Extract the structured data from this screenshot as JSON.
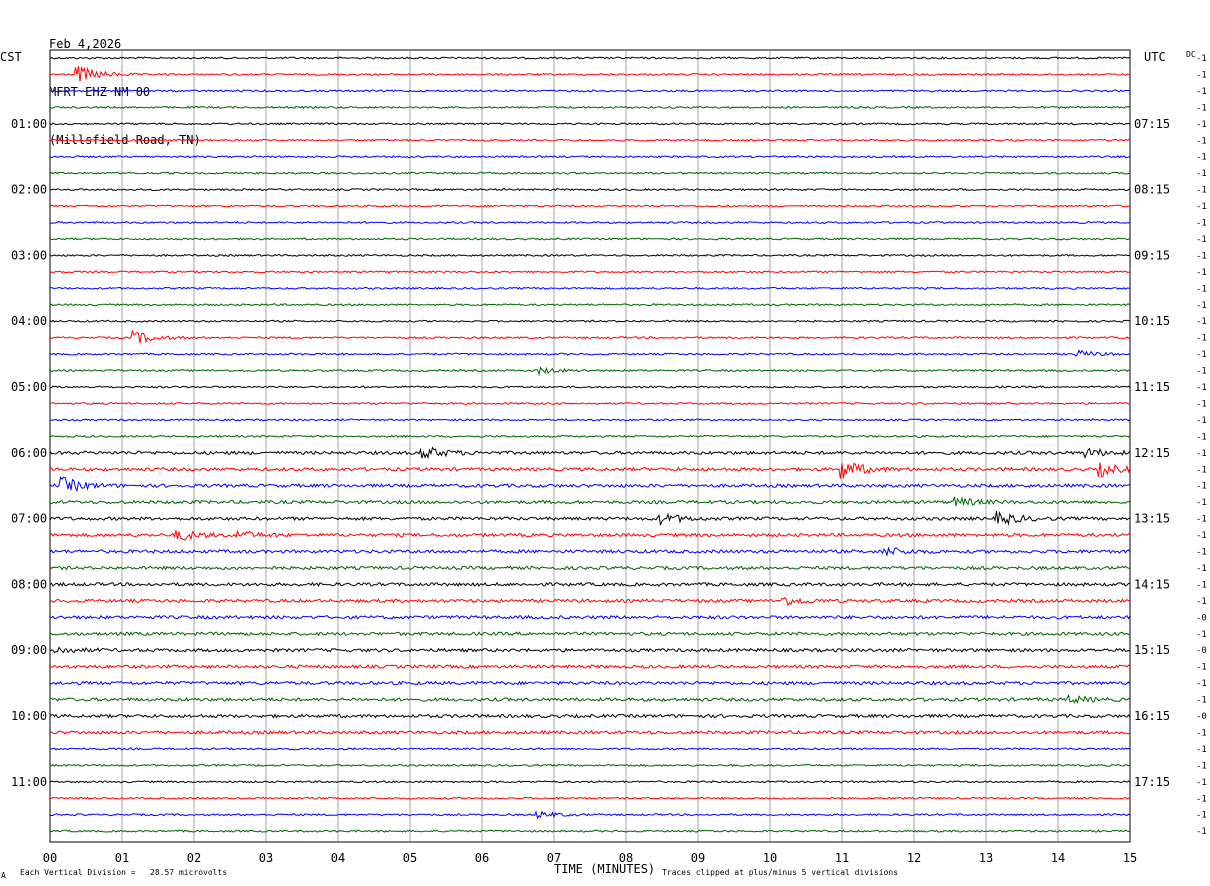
{
  "header": {
    "date": "Feb 4,2026",
    "station": "MFRT EHZ NM 00",
    "location": "(Millsfield Road, TN)"
  },
  "left_timezone": "CST",
  "right_timezone": "UTC",
  "dc_label": "DC",
  "left_hour_labels": [
    "01:00",
    "02:00",
    "03:00",
    "04:00",
    "05:00",
    "06:00",
    "07:00",
    "08:00",
    "09:00",
    "10:00",
    "11:00"
  ],
  "right_hour_labels": [
    "07:15",
    "08:15",
    "09:15",
    "10:15",
    "11:15",
    "12:15",
    "13:15",
    "14:15",
    "15:15",
    "16:15",
    "17:15"
  ],
  "footer": {
    "scale_note": "Each Vertical Division =   28.57 microvolts",
    "xlabel": "TIME (MINUTES)",
    "clip_note": "Traces clipped at plus/minus 5 vertical divisions",
    "corner_mark": "A"
  },
  "colors": {
    "cycle": [
      "#000000",
      "#ff0000",
      "#0000ff",
      "#006400"
    ],
    "grid": "#808080"
  },
  "chart_data": {
    "type": "line",
    "title": "",
    "xlabel": "TIME (MINUTES)",
    "xlim": [
      0,
      15
    ],
    "x_ticks": [
      "00",
      "01",
      "02",
      "03",
      "04",
      "05",
      "06",
      "07",
      "08",
      "09",
      "10",
      "11",
      "12",
      "13",
      "14",
      "15"
    ],
    "trace_count": 48,
    "trace_offsets": [
      "-1",
      "-1",
      "-1",
      "-1",
      "-1",
      "-1",
      "-1",
      "-1",
      "-1",
      "-1",
      "-1",
      "-1",
      "-1",
      "-1",
      "-1",
      "-1",
      "-1",
      "-1",
      "-1",
      "-1",
      "-1",
      "-1",
      "-1",
      "-1",
      "-1",
      "-1",
      "-1",
      "-1",
      "-1",
      "-1",
      "-1",
      "-1",
      "-1",
      "-1",
      "-0",
      "-1",
      "-0",
      "-1",
      "-1",
      "-1",
      "-0",
      "-1",
      "-1",
      "-1",
      "-1",
      "-1",
      "-1",
      "-1"
    ],
    "events": [
      {
        "trace": 1,
        "minute": 0.4,
        "amp": 8
      },
      {
        "trace": 17,
        "minute": 1.2,
        "amp": 6
      },
      {
        "trace": 18,
        "minute": 14.3,
        "amp": 3
      },
      {
        "trace": 19,
        "minute": 6.8,
        "amp": 3
      },
      {
        "trace": 24,
        "minute": 5.2,
        "amp": 6
      },
      {
        "trace": 24,
        "minute": 14.4,
        "amp": 4
      },
      {
        "trace": 25,
        "minute": 11.0,
        "amp": 10
      },
      {
        "trace": 25,
        "minute": 14.6,
        "amp": 6
      },
      {
        "trace": 26,
        "minute": 0.2,
        "amp": 7
      },
      {
        "trace": 27,
        "minute": 12.6,
        "amp": 4
      },
      {
        "trace": 28,
        "minute": 8.5,
        "amp": 5
      },
      {
        "trace": 28,
        "minute": 13.2,
        "amp": 6
      },
      {
        "trace": 29,
        "minute": 1.8,
        "amp": 5
      },
      {
        "trace": 29,
        "minute": 2.6,
        "amp": 4
      },
      {
        "trace": 30,
        "minute": 11.6,
        "amp": 4
      },
      {
        "trace": 33,
        "minute": 10.2,
        "amp": 4
      },
      {
        "trace": 36,
        "minute": 0.1,
        "amp": 3
      },
      {
        "trace": 39,
        "minute": 14.2,
        "amp": 3
      },
      {
        "trace": 46,
        "minute": 6.8,
        "amp": 3
      }
    ]
  }
}
